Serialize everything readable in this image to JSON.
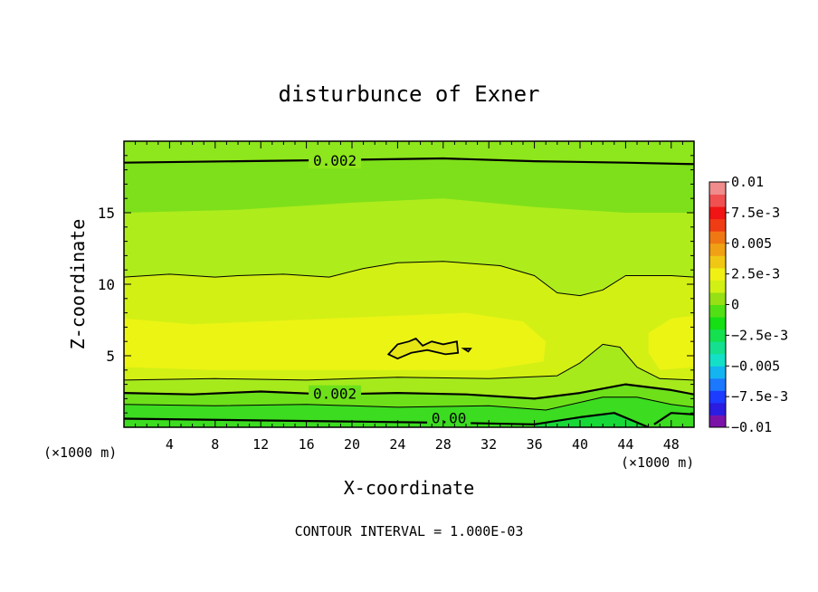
{
  "chart_data": {
    "type": "heatmap",
    "title": "disturbunce of Exner",
    "xlabel": "X-coordinate",
    "ylabel": "Z-coordinate",
    "x_unit_left": "(×1000 m)",
    "x_unit_right": "(×1000 m)",
    "footer": "CONTOUR INTERVAL = 1.000E-03",
    "xlim": [
      0,
      50
    ],
    "ylim": [
      0,
      20
    ],
    "x_ticks": [
      4,
      8,
      12,
      16,
      20,
      24,
      28,
      32,
      36,
      40,
      44,
      48
    ],
    "x_tick_labels": [
      "4",
      "8",
      "12",
      "16",
      "20",
      "24",
      "28",
      "32",
      "36",
      "40",
      "44",
      "48"
    ],
    "y_ticks": [
      5,
      10,
      15
    ],
    "y_tick_labels": [
      "5",
      "10",
      "15"
    ],
    "contour_labels": [
      {
        "text": "0.002",
        "x": 18.5,
        "z": 18.6
      },
      {
        "text": "0.002",
        "x": 18.5,
        "z": 2.3
      },
      {
        "text": "0.00",
        "x": 28.5,
        "z": 0.6
      }
    ],
    "contour_lines": [
      {
        "level": 0.002,
        "bold": true,
        "points": [
          [
            0,
            18.5
          ],
          [
            10,
            18.6
          ],
          [
            20,
            18.7
          ],
          [
            28,
            18.8
          ],
          [
            36,
            18.6
          ],
          [
            44,
            18.5
          ],
          [
            50,
            18.4
          ]
        ]
      },
      {
        "level": 0.003,
        "bold": false,
        "points": [
          [
            0,
            10.5
          ],
          [
            4,
            10.7
          ],
          [
            8,
            10.5
          ],
          [
            10,
            10.6
          ],
          [
            14,
            10.7
          ],
          [
            18,
            10.5
          ],
          [
            21,
            11.1
          ],
          [
            24,
            11.5
          ],
          [
            28,
            11.6
          ],
          [
            33,
            11.3
          ],
          [
            36,
            10.6
          ],
          [
            38,
            9.4
          ],
          [
            40,
            9.2
          ],
          [
            42,
            9.6
          ],
          [
            44,
            10.6
          ],
          [
            48,
            10.6
          ],
          [
            50,
            10.5
          ]
        ]
      },
      {
        "level": 0.002,
        "bold": true,
        "points": [
          [
            0,
            2.4
          ],
          [
            6,
            2.3
          ],
          [
            12,
            2.5
          ],
          [
            18,
            2.3
          ],
          [
            24,
            2.4
          ],
          [
            30,
            2.3
          ],
          [
            36,
            2.0
          ],
          [
            40,
            2.4
          ],
          [
            44,
            3.0
          ],
          [
            48,
            2.6
          ],
          [
            50,
            2.3
          ]
        ]
      },
      {
        "level": 0.001,
        "bold": false,
        "points": [
          [
            0,
            1.6
          ],
          [
            8,
            1.5
          ],
          [
            16,
            1.6
          ],
          [
            24,
            1.4
          ],
          [
            32,
            1.5
          ],
          [
            37,
            1.2
          ],
          [
            42,
            2.1
          ],
          [
            45,
            2.1
          ],
          [
            48,
            1.6
          ],
          [
            50,
            1.4
          ]
        ]
      },
      {
        "level": 0.003,
        "bold": false,
        "points": [
          [
            0,
            3.3
          ],
          [
            8,
            3.4
          ],
          [
            16,
            3.3
          ],
          [
            24,
            3.5
          ],
          [
            32,
            3.4
          ],
          [
            38,
            3.6
          ],
          [
            40,
            4.5
          ],
          [
            42,
            5.8
          ],
          [
            43.5,
            5.6
          ],
          [
            45,
            4.2
          ],
          [
            47,
            3.4
          ],
          [
            50,
            3.3
          ]
        ]
      },
      {
        "level": 0.0,
        "bold": true,
        "points": [
          [
            0,
            0.6
          ],
          [
            10,
            0.5
          ],
          [
            20,
            0.4
          ],
          [
            30,
            0.3
          ],
          [
            36,
            0.2
          ],
          [
            40,
            0.7
          ],
          [
            43,
            1.0
          ],
          [
            46,
            0.0
          ]
        ]
      },
      {
        "level": 0.0,
        "bold": true,
        "points": [
          [
            46.5,
            0.2
          ],
          [
            48,
            1.0
          ],
          [
            50,
            0.9
          ]
        ]
      }
    ],
    "contour_loops": [
      {
        "level": 0.004,
        "points": [
          [
            23.2,
            5.1
          ],
          [
            24,
            5.8
          ],
          [
            25,
            6.0
          ],
          [
            25.6,
            6.2
          ],
          [
            26.2,
            5.7
          ],
          [
            27,
            6.0
          ],
          [
            28,
            5.8
          ],
          [
            29.2,
            6.0
          ],
          [
            29.3,
            5.2
          ],
          [
            28.2,
            5.1
          ],
          [
            26.6,
            5.4
          ],
          [
            25.2,
            5.2
          ],
          [
            24,
            4.8
          ]
        ]
      },
      {
        "level": 0.004,
        "points": [
          [
            29.8,
            5.5
          ],
          [
            30.4,
            5.5
          ],
          [
            30.2,
            5.3
          ]
        ]
      }
    ],
    "colorbar": {
      "min": -0.01,
      "max": 0.01,
      "tick_labels": [
        "0.01",
        "7.5e-3",
        "0.005",
        "2.5e-3",
        "0",
        "−2.5e-3",
        "−0.005",
        "−7.5e-3",
        "−0.01"
      ],
      "tick_values": [
        0.01,
        0.0075,
        0.005,
        0.0025,
        0,
        -0.0025,
        -0.005,
        -0.0075,
        -0.01
      ],
      "colors": [
        "#7a14a8",
        "#2a1ce0",
        "#1c3cff",
        "#1c78ff",
        "#14b4f0",
        "#14e0c8",
        "#14e090",
        "#14e050",
        "#14e014",
        "#50e014",
        "#96e014",
        "#d2f014",
        "#f0f014",
        "#f0c814",
        "#f0a014",
        "#f07814",
        "#f03c14",
        "#f01414",
        "#f05050",
        "#f08c8c"
      ]
    }
  }
}
